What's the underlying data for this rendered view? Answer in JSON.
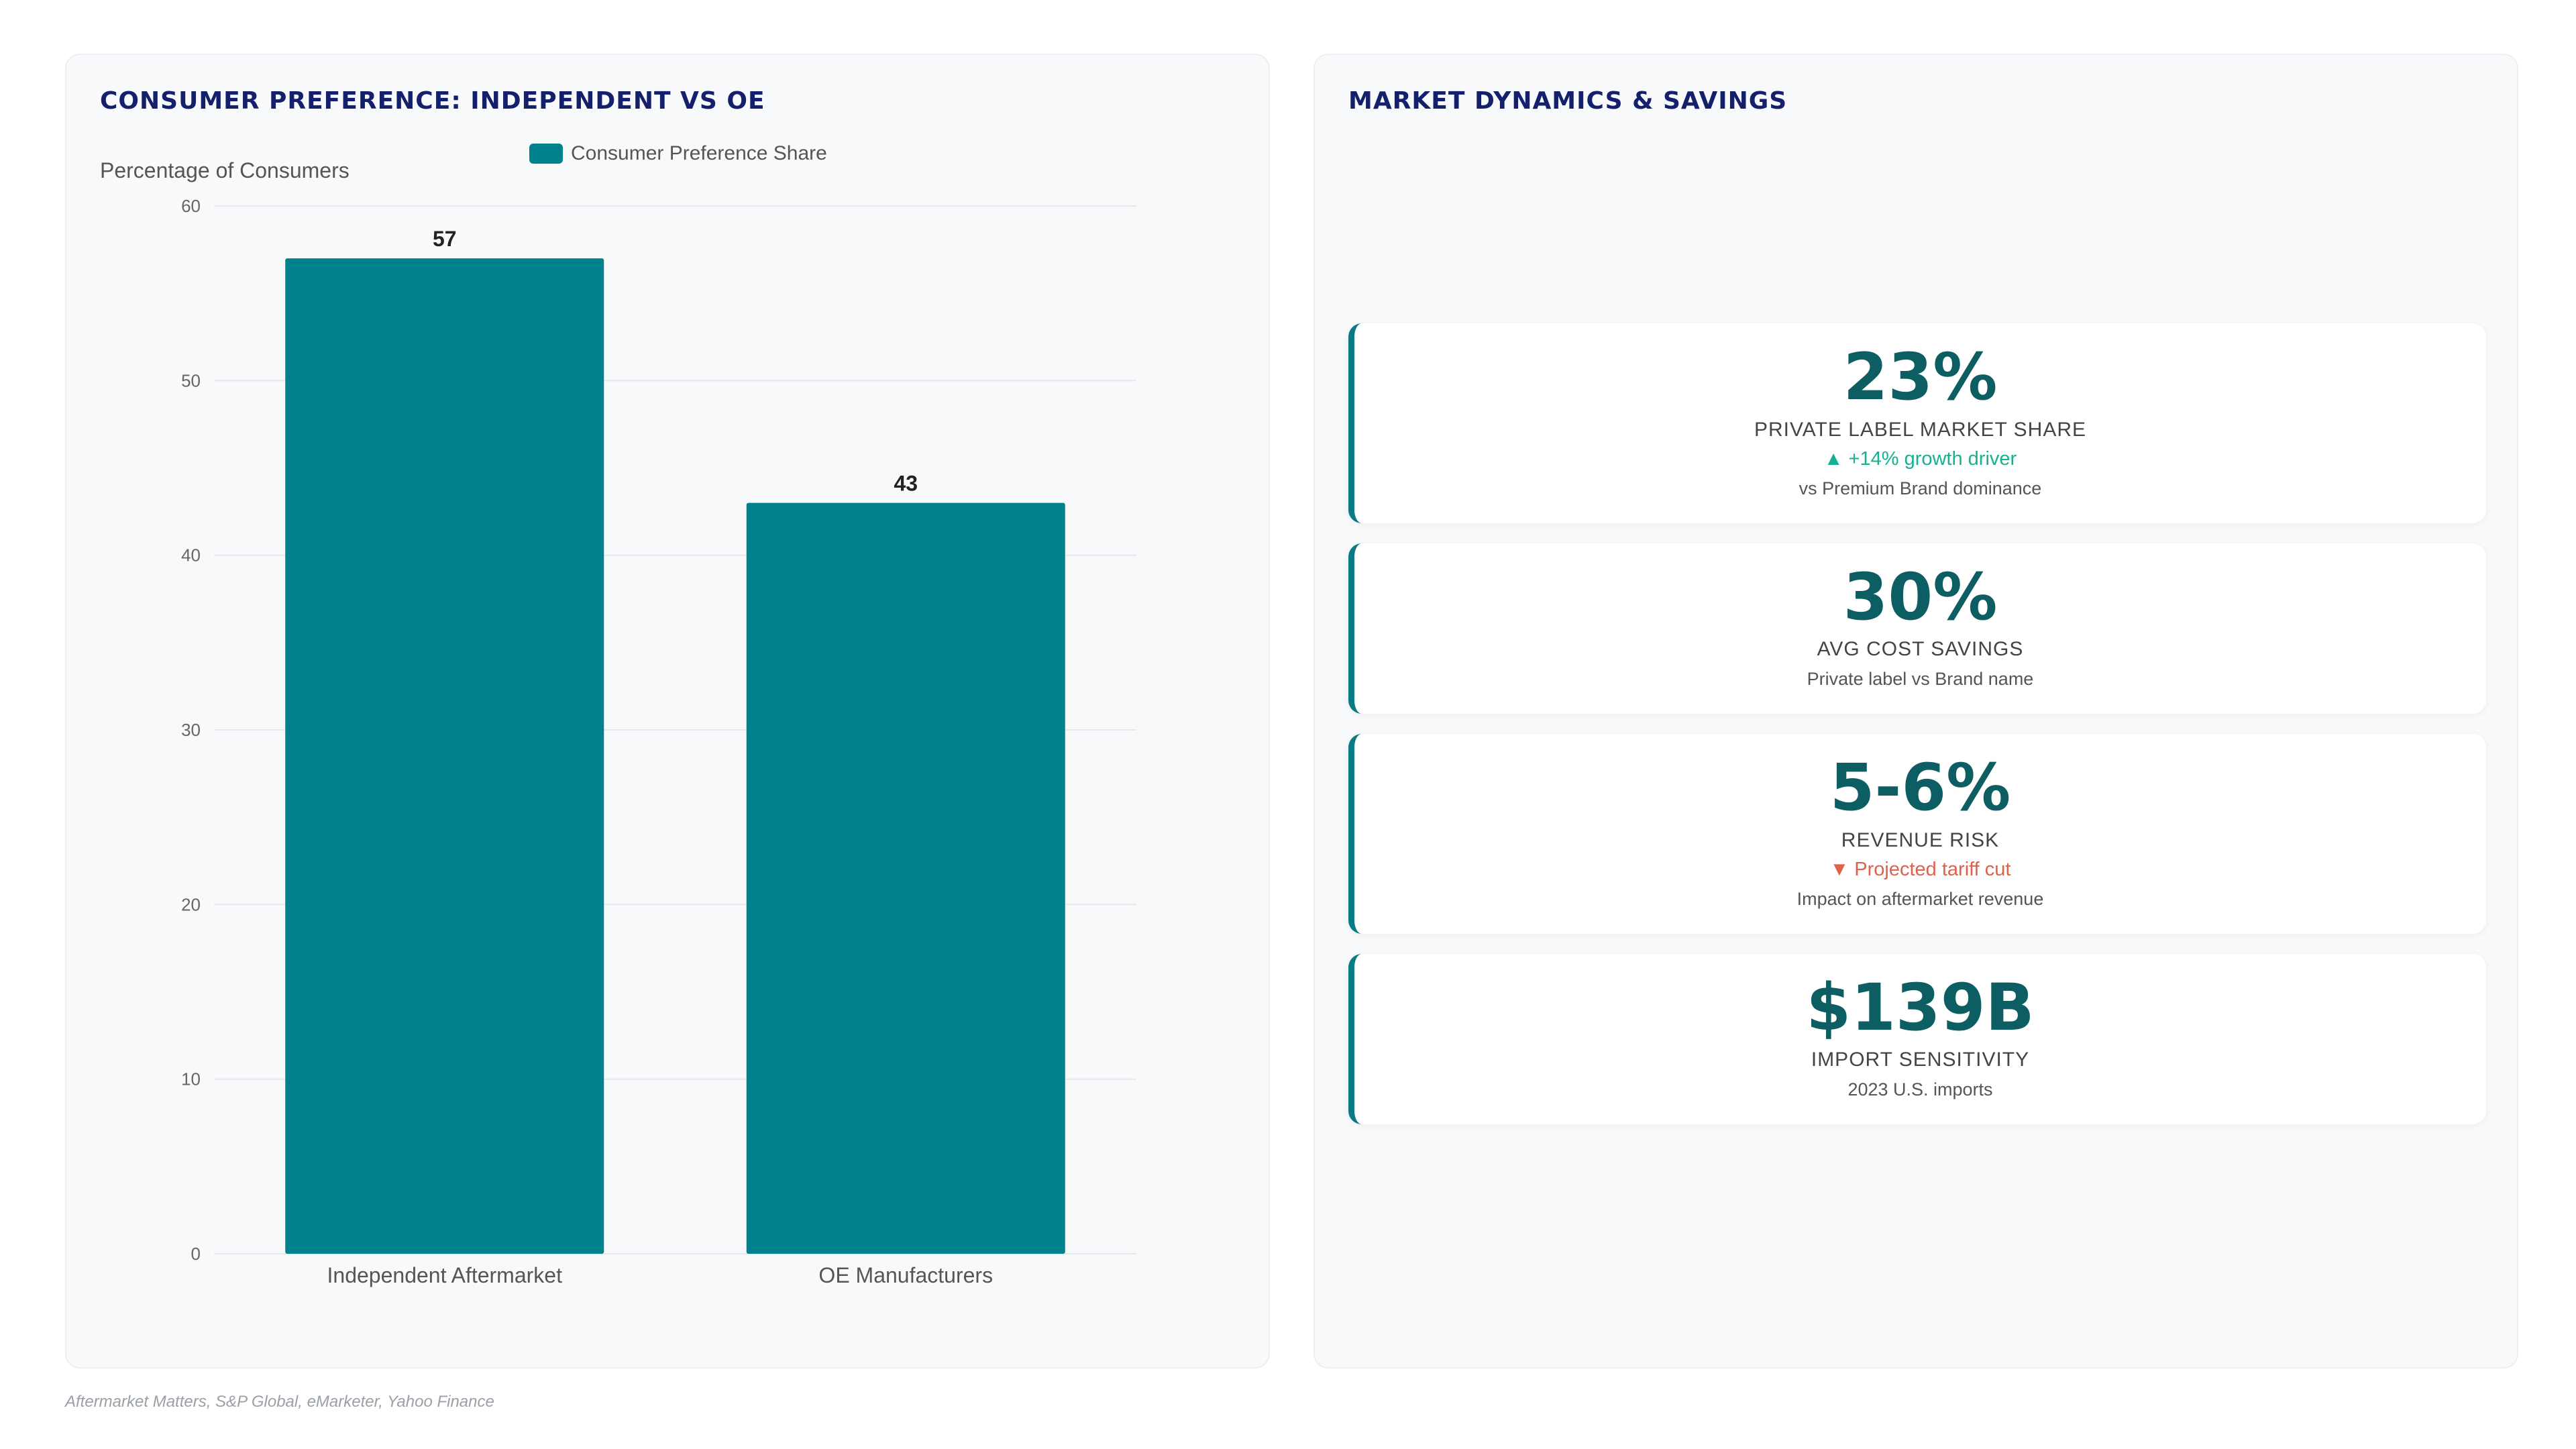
{
  "left_panel": {
    "title": "CONSUMER PREFERENCE: INDEPENDENT VS OE"
  },
  "right_panel": {
    "title": "MARKET DYNAMICS & SAVINGS",
    "cards": [
      {
        "value": "23%",
        "label": "PRIVATE LABEL MARKET SHARE",
        "trend": "▲ +14% growth driver",
        "trend_dir": "up",
        "note": "vs Premium Brand dominance"
      },
      {
        "value": "30%",
        "label": "AVG COST SAVINGS",
        "trend": "",
        "trend_dir": "",
        "note": "Private label vs Brand name"
      },
      {
        "value": "5-6%",
        "label": "REVENUE RISK",
        "trend": "▼ Projected tariff cut",
        "trend_dir": "down",
        "note": "Impact on aftermarket revenue"
      },
      {
        "value": "$139B",
        "label": "IMPORT SENSITIVITY",
        "trend": "",
        "trend_dir": "",
        "note": "2023 U.S. imports"
      }
    ]
  },
  "source": "Aftermarket Matters, S&P Global, eMarketer, Yahoo Finance",
  "colors": {
    "bar": "#00828c",
    "title": "#14206b",
    "value": "#0d5e63",
    "accent_border": "#0a7a84",
    "trend_up": "#17b091",
    "trend_down": "#e0614a"
  },
  "chart_data": {
    "type": "bar",
    "title": "",
    "xlabel": "",
    "ylabel": "Percentage of Consumers",
    "categories": [
      "Independent Aftermarket",
      "OE Manufacturers"
    ],
    "series": [
      {
        "name": "Consumer Preference Share",
        "values": [
          57,
          43
        ]
      }
    ],
    "data_labels": [
      "57",
      "43"
    ],
    "ylim": [
      0,
      60
    ],
    "yticks": [
      0,
      10,
      20,
      30,
      40,
      50,
      60
    ],
    "grid": true,
    "legend": "top-center"
  }
}
